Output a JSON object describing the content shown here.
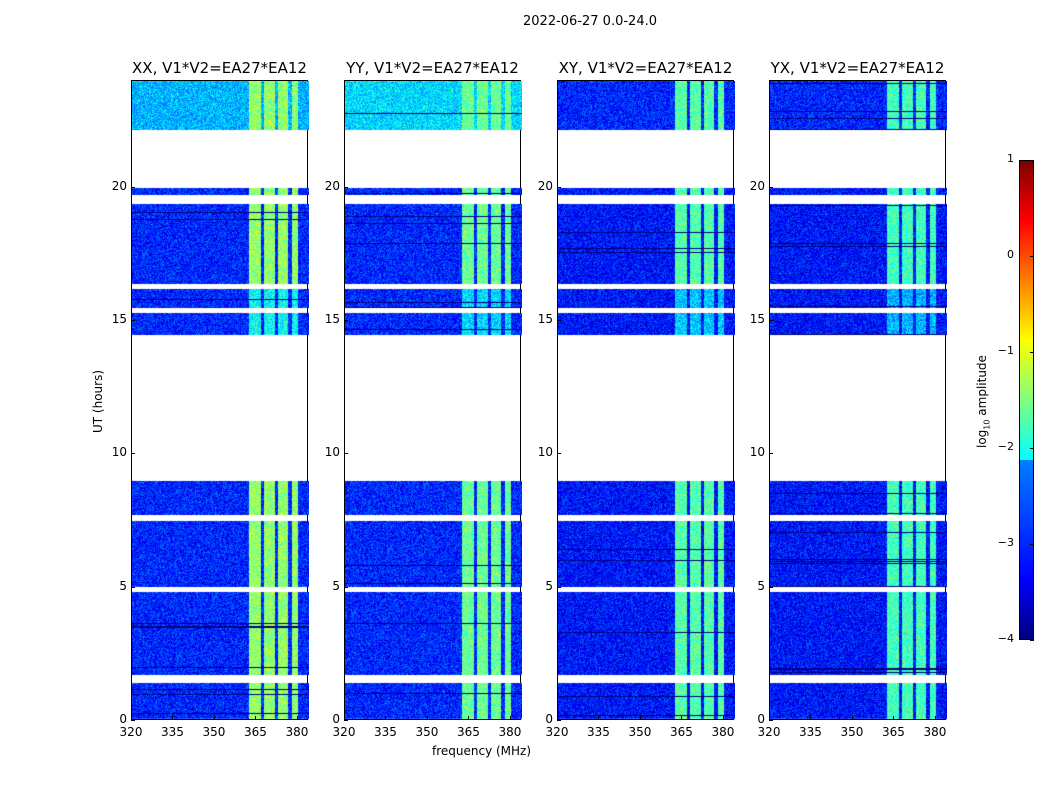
{
  "suptitle": "2022-06-27 0.0-24.0",
  "chart_data": {
    "type": "heatmap",
    "xlabel": "frequency (MHz)",
    "ylabel": "UT (hours)",
    "xlim": [
      320,
      384
    ],
    "ylim": [
      0,
      24
    ],
    "xticks": [
      "320",
      "335",
      "350",
      "365",
      "380"
    ],
    "xtick_values": [
      320,
      335,
      350,
      365,
      380
    ],
    "yticks": [
      "0",
      "5",
      "10",
      "15",
      "20"
    ],
    "ytick_values": [
      0,
      5,
      10,
      15,
      20
    ],
    "colormap": "jet",
    "colorbar": {
      "label": "log10 amplitude",
      "label_main": "log",
      "label_sub": "10",
      "label_rest": " amplitude",
      "range": [
        -4,
        1
      ],
      "ticks": [
        "1",
        "0",
        "−1",
        "−2",
        "−3",
        "−4"
      ],
      "tick_values": [
        1,
        0,
        -1,
        -2,
        -3,
        -4
      ]
    },
    "data_time_segments_hours": [
      [
        0.1,
        1.45
      ],
      [
        1.75,
        4.85
      ],
      [
        5.05,
        7.5
      ],
      [
        7.75,
        9.0
      ],
      [
        14.5,
        15.3
      ],
      [
        15.5,
        16.2
      ],
      [
        16.4,
        19.4
      ],
      [
        19.75,
        20.0
      ],
      [
        22.2,
        24.0
      ]
    ],
    "bright_band_mhz": [
      362,
      380
    ],
    "band_gaps_mhz": [
      367,
      372,
      377
    ],
    "panels": [
      {
        "title": "XX, V1*V2=EA27*EA12",
        "background_log_amp": -3.2,
        "band_log_amp": -1.4,
        "late_background_log_amp": -2.5
      },
      {
        "title": "YY, V1*V2=EA27*EA12",
        "background_log_amp": -3.2,
        "band_log_amp": -1.6,
        "late_background_log_amp": -2.3
      },
      {
        "title": "XY, V1*V2=EA27*EA12",
        "background_log_amp": -3.3,
        "band_log_amp": -1.7,
        "late_background_log_amp": -3.2
      },
      {
        "title": "YX, V1*V2=EA27*EA12",
        "background_log_amp": -3.3,
        "band_log_amp": -1.8,
        "late_background_log_amp": -3.2
      }
    ]
  }
}
